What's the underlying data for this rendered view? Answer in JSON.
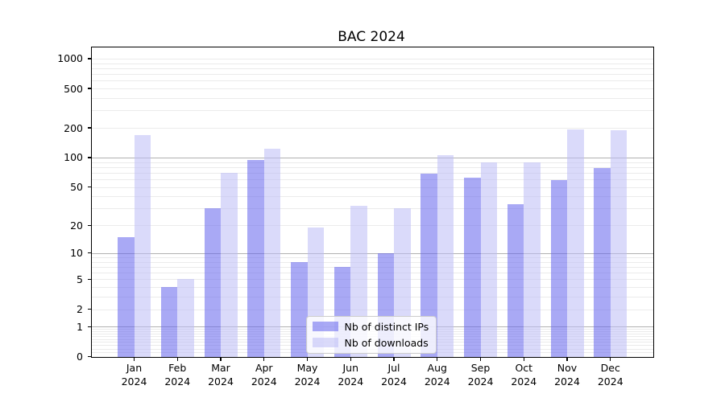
{
  "title": "BAC 2024",
  "colors": {
    "ips_bar": "rgba(99,99,237,0.55)",
    "downloads_bar": "rgba(187,187,246,0.55)",
    "grid_major": "#b1b1b1",
    "grid_minor": "#ebebeb",
    "spine": "#000000"
  },
  "legend": {
    "items": [
      {
        "label": "Nb of distinct IPs"
      },
      {
        "label": "Nb of downloads"
      }
    ]
  },
  "chart_data": {
    "type": "bar",
    "title": "BAC 2024",
    "categories": [
      "Jan 2024",
      "Feb 2024",
      "Mar 2024",
      "Apr 2024",
      "May 2024",
      "Jun 2024",
      "Jul 2024",
      "Aug 2024",
      "Sep 2024",
      "Oct 2024",
      "Nov 2024",
      "Dec 2024"
    ],
    "x_tick_months": [
      "Jan",
      "Feb",
      "Mar",
      "Apr",
      "May",
      "Jun",
      "Jul",
      "Aug",
      "Sep",
      "Oct",
      "Nov",
      "Dec"
    ],
    "x_tick_year": "2024",
    "series": [
      {
        "name": "Nb of distinct IPs",
        "values": [
          15,
          4,
          30,
          95,
          8,
          7,
          10,
          69,
          62,
          33,
          59,
          78
        ]
      },
      {
        "name": "Nb of downloads",
        "values": [
          168,
          5,
          70,
          123,
          19,
          32,
          30,
          105,
          89,
          89,
          192,
          188
        ]
      }
    ],
    "yscale": "log10(1+y)",
    "ylim": [
      0,
      1300
    ],
    "y_tick_values": [
      0,
      1,
      2,
      5,
      10,
      20,
      50,
      100,
      200,
      500,
      1000
    ],
    "y_tick_labels": [
      "0",
      "1",
      "2",
      "5",
      "10",
      "20",
      "50",
      "100",
      "200",
      "500",
      "1000"
    ],
    "grid_major_values": [
      1,
      10,
      100
    ],
    "grid_minor_values": [
      0.1,
      0.2,
      0.3,
      0.4,
      0.5,
      0.6,
      0.7,
      0.8,
      0.9,
      2,
      3,
      4,
      5,
      6,
      7,
      8,
      9,
      20,
      30,
      40,
      50,
      60,
      70,
      80,
      90,
      200,
      300,
      400,
      500,
      600,
      700,
      800,
      900,
      1000
    ],
    "legend_position": "lower center"
  }
}
